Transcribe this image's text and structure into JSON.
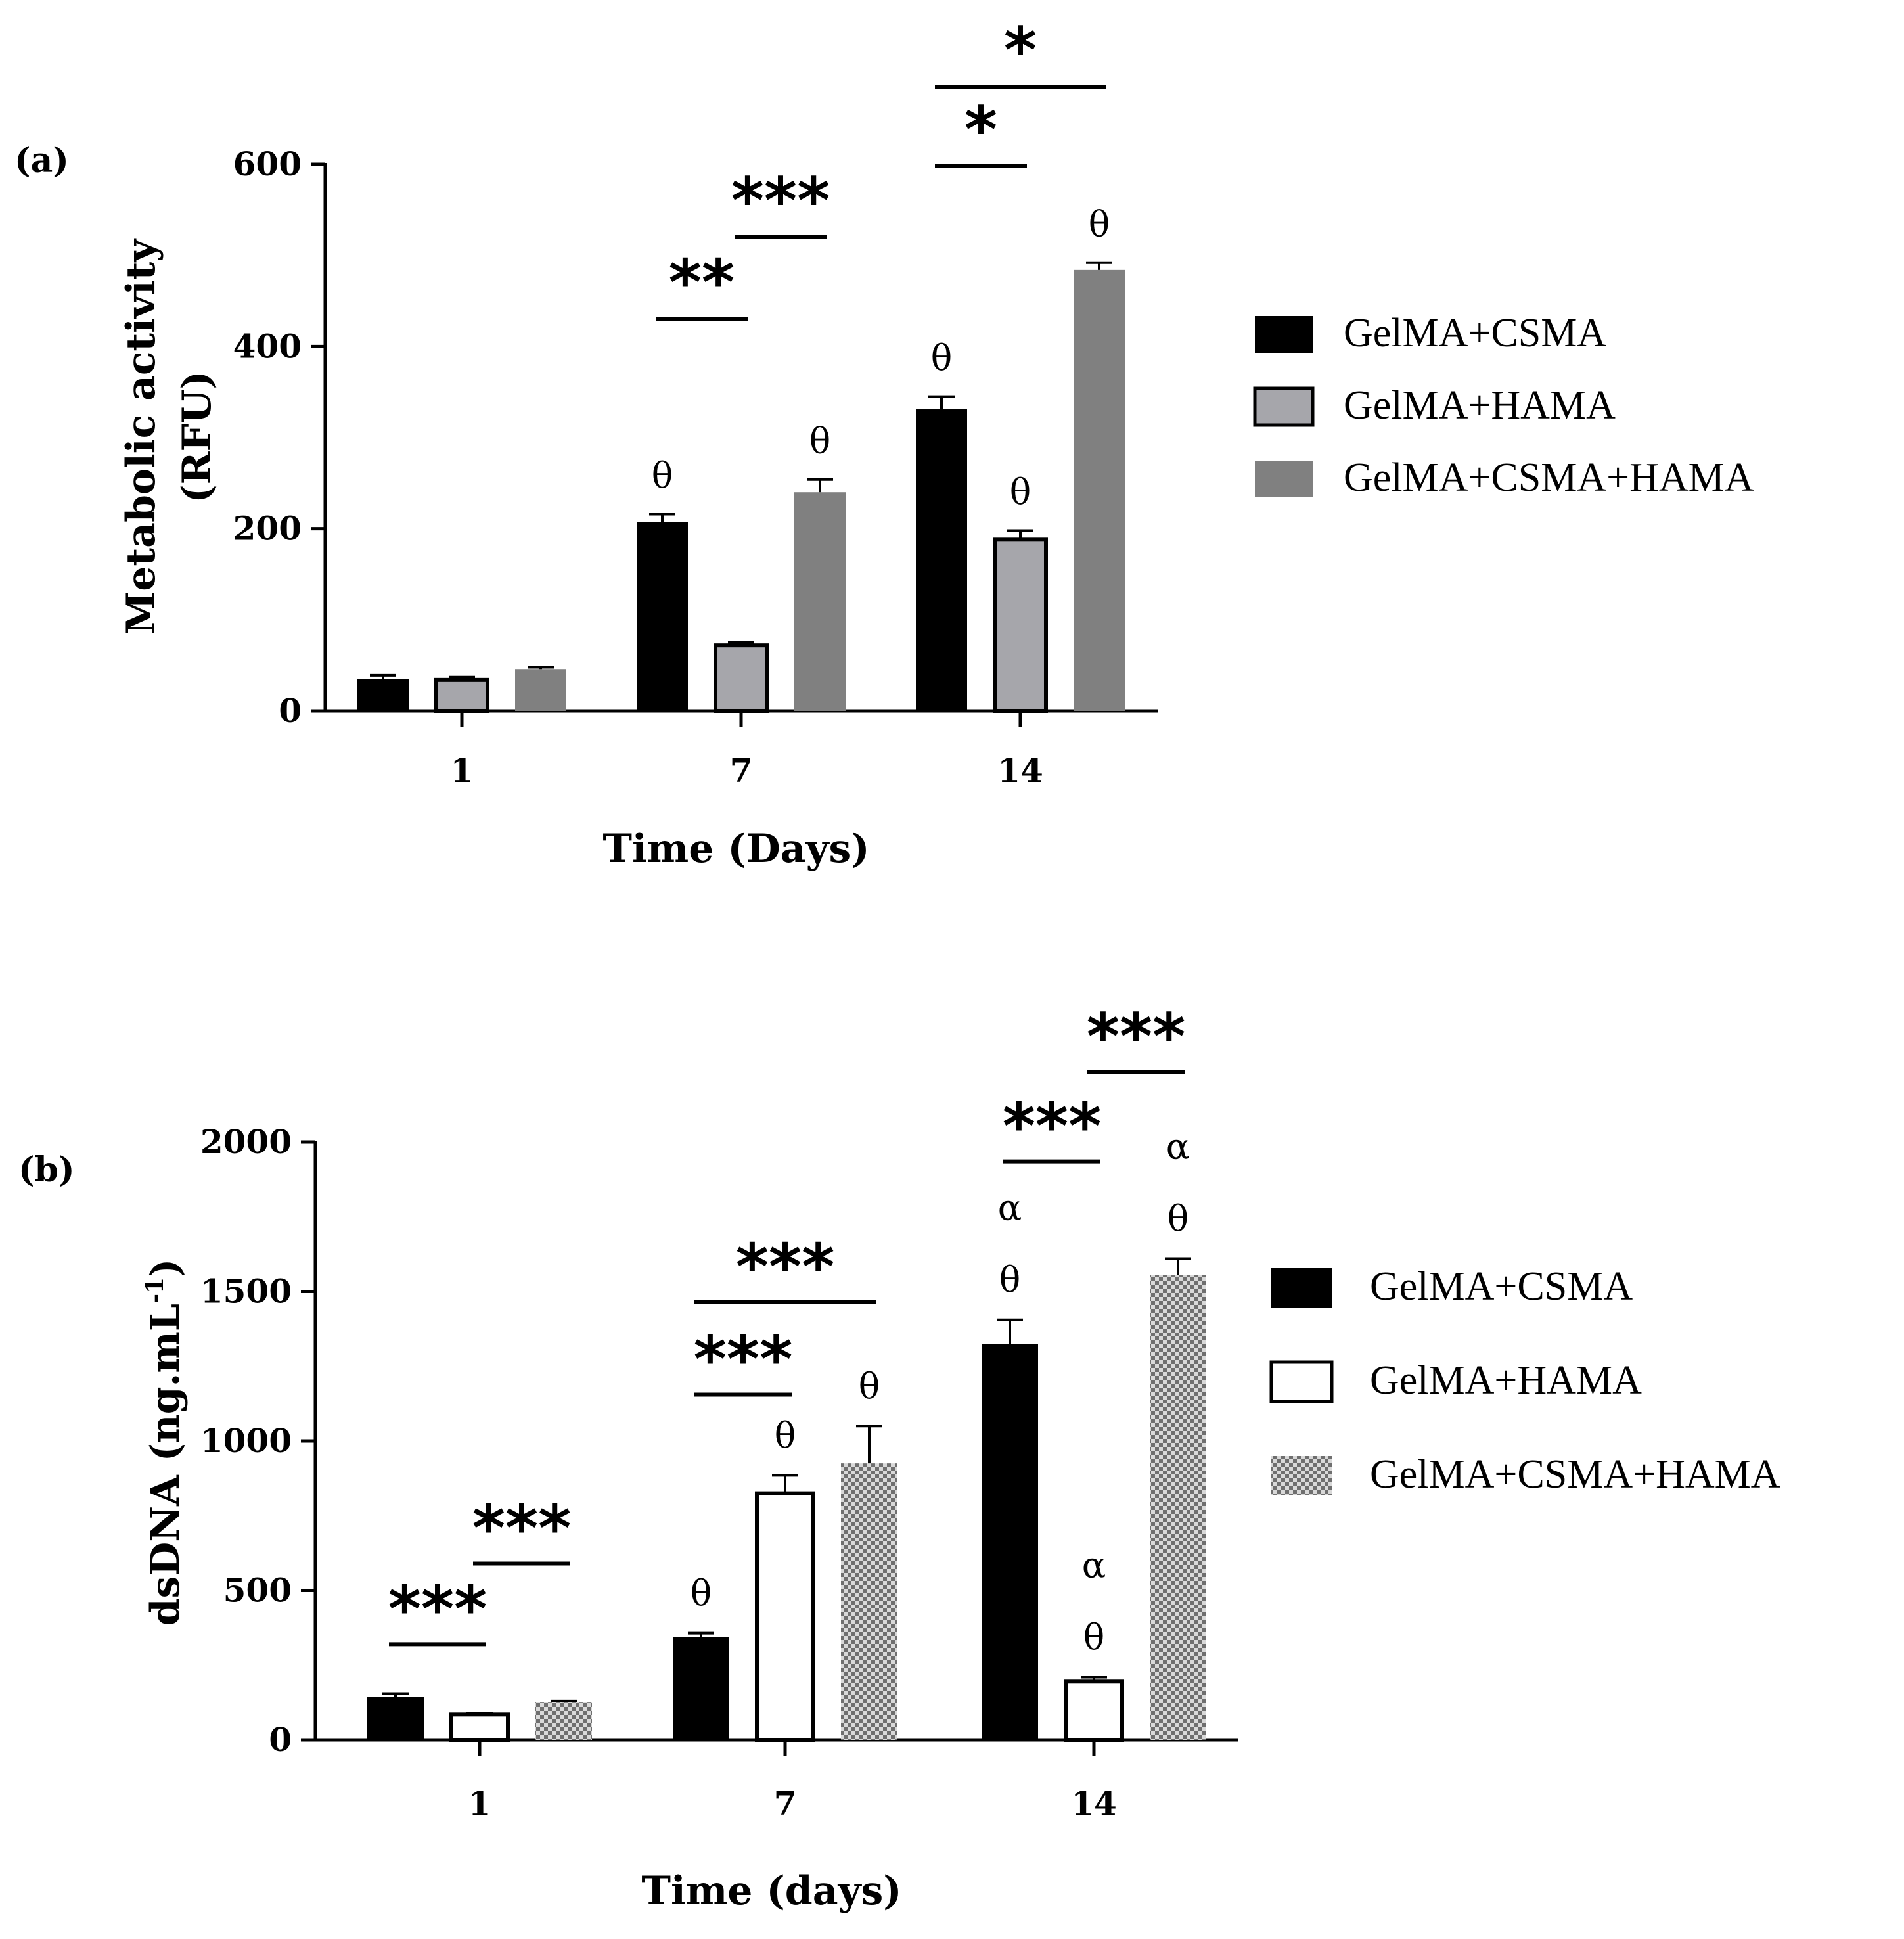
{
  "chart_data": [
    {
      "type": "bar",
      "panel_label": "(a)",
      "ylabel": "Metabolic activity",
      "ylabel_unit": "(RFU)",
      "xlabel": "Time (Days)",
      "ylim": [
        0,
        600
      ],
      "yticks": [
        "0",
        "200",
        "400",
        "600"
      ],
      "categories": [
        "1",
        "7",
        "14"
      ],
      "series": [
        {
          "name": "GelMA+CSMA",
          "values": [
            35,
            207,
            331
          ],
          "errors": [
            4,
            9,
            14
          ],
          "fill": "#000000",
          "pattern": "solid"
        },
        {
          "name": "GelMA+HAMA",
          "values": [
            34,
            72,
            188
          ],
          "errors": [
            3,
            3,
            10
          ],
          "fill": "#a6a6ab",
          "pattern": "outlined"
        },
        {
          "name": "GelMA+CSMA+HAMA",
          "values": [
            46,
            240,
            484
          ],
          "errors": [
            2,
            14,
            8
          ],
          "fill": "#808080",
          "pattern": "solid"
        }
      ],
      "point_marks": [
        {
          "cat": 1,
          "series": 0,
          "text": "θ"
        },
        {
          "cat": 1,
          "series": 2,
          "text": "θ"
        },
        {
          "cat": 2,
          "series": 0,
          "text": "θ"
        },
        {
          "cat": 2,
          "series": 1,
          "text": "θ"
        },
        {
          "cat": 2,
          "series": 2,
          "text": "θ"
        }
      ],
      "significance": [
        {
          "from": [
            1,
            0
          ],
          "to": [
            1,
            1
          ],
          "y": 430,
          "label": "**"
        },
        {
          "from": [
            1,
            1
          ],
          "to": [
            1,
            2
          ],
          "y": 520,
          "label": "***"
        },
        {
          "from": [
            2,
            0
          ],
          "to": [
            2,
            1
          ],
          "y": 598,
          "label": "*"
        },
        {
          "from": [
            2,
            0
          ],
          "to": [
            2,
            2
          ],
          "y": 685,
          "label": "*"
        }
      ],
      "legend_position": "right"
    },
    {
      "type": "bar",
      "panel_label": "(b)",
      "ylabel": "dsDNA (ng.mL",
      "ylabel_sup": "-1",
      "ylabel_close": ")",
      "xlabel": "Time (days)",
      "ylim": [
        0,
        2000
      ],
      "yticks": [
        "0",
        "500",
        "1000",
        "1500",
        "2000"
      ],
      "categories": [
        "1",
        "7",
        "14"
      ],
      "series": [
        {
          "name": "GelMA+CSMA",
          "values": [
            145,
            345,
            1325
          ],
          "errors": [
            10,
            12,
            80
          ],
          "fill": "#000000",
          "pattern": "solid"
        },
        {
          "name": "GelMA+HAMA",
          "values": [
            85,
            825,
            195
          ],
          "errors": [
            5,
            60,
            15
          ],
          "fill": "#ffffff",
          "pattern": "outlined"
        },
        {
          "name": "GelMA+CSMA+HAMA",
          "values": [
            125,
            925,
            1555
          ],
          "errors": [
            5,
            125,
            55
          ],
          "fill": "#b0b0b0",
          "pattern": "checker"
        }
      ],
      "point_marks": [
        {
          "cat": 1,
          "series": 0,
          "text": "θ"
        },
        {
          "cat": 1,
          "series": 1,
          "text": "θ"
        },
        {
          "cat": 1,
          "series": 2,
          "text": "θ"
        },
        {
          "cat": 2,
          "series": 0,
          "text": "θ",
          "above": "α"
        },
        {
          "cat": 2,
          "series": 1,
          "text": "θ",
          "above": "α"
        },
        {
          "cat": 2,
          "series": 2,
          "text": "θ",
          "above": "α"
        }
      ],
      "significance": [
        {
          "from": [
            0,
            0
          ],
          "to": [
            0,
            1
          ],
          "y": 320,
          "label": "***"
        },
        {
          "from": [
            0,
            1
          ],
          "to": [
            0,
            2
          ],
          "y": 590,
          "label": "***"
        },
        {
          "from": [
            1,
            0
          ],
          "to": [
            1,
            1
          ],
          "y": 1155,
          "label": "***"
        },
        {
          "from": [
            1,
            0
          ],
          "to": [
            1,
            2
          ],
          "y": 1465,
          "label": "***"
        },
        {
          "from": [
            2,
            0
          ],
          "to": [
            2,
            1
          ],
          "y": 1935,
          "label": "***"
        },
        {
          "from": [
            2,
            1
          ],
          "to": [
            2,
            2
          ],
          "y": 2235,
          "label": "***"
        }
      ],
      "legend_position": "right"
    }
  ]
}
